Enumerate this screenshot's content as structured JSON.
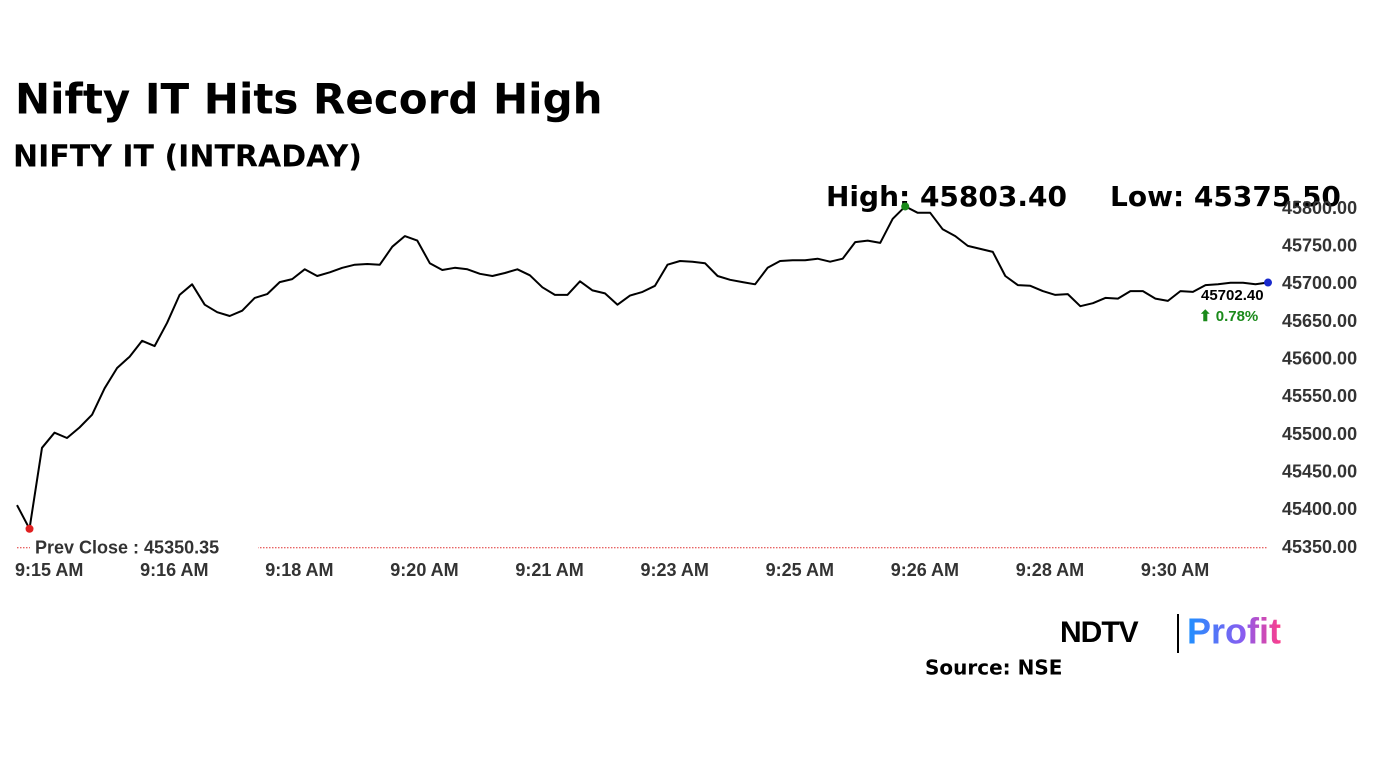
{
  "chart_data": {
    "type": "line",
    "title": "Nifty IT Hits Record High",
    "subtitle": "NIFTY IT (INTRADAY)",
    "high_label": "High: 45803.40",
    "low_label": "Low: 45375.50",
    "last_label": "45702.40",
    "change_label": "⬆ 0.78%",
    "reference_line": {
      "value": 45350.35,
      "label": "Prev Close : 45350.35",
      "color": "#e03030"
    },
    "categories": [
      "9:15 AM",
      null,
      null,
      null,
      null,
      null,
      null,
      null,
      null,
      null,
      "9:16 AM",
      null,
      null,
      null,
      null,
      null,
      null,
      null,
      null,
      null,
      "9:18 AM",
      null,
      null,
      null,
      null,
      null,
      null,
      null,
      null,
      null,
      "9:20 AM",
      null,
      null,
      null,
      null,
      null,
      null,
      null,
      null,
      null,
      "9:21 AM",
      null,
      null,
      null,
      null,
      null,
      null,
      null,
      null,
      null,
      "9:23 AM",
      null,
      null,
      null,
      null,
      null,
      null,
      null,
      null,
      null,
      "9:25 AM",
      null,
      null,
      null,
      null,
      null,
      null,
      null,
      null,
      null,
      "9:26 AM",
      null,
      null,
      null,
      null,
      null,
      null,
      null,
      null,
      null,
      "9:28 AM",
      null,
      null,
      null,
      null,
      null,
      null,
      null,
      null,
      null,
      "9:30 AM",
      null,
      null,
      null,
      null,
      null,
      null,
      null,
      null,
      null,
      null
    ],
    "values": [
      45407,
      45375.5,
      45483,
      45503,
      45496,
      45510,
      45527,
      45562,
      45589,
      45604,
      45625,
      45618,
      45649,
      45686,
      45700,
      45673,
      45663,
      45658,
      45665,
      45682,
      45687,
      45703,
      45707,
      45720,
      45711,
      45716,
      45722,
      45726,
      45727,
      45726,
      45750,
      45764,
      45758,
      45728,
      45719,
      45722,
      45720,
      45714,
      45711,
      45715,
      45720,
      45712,
      45696,
      45686,
      45686,
      45704,
      45692,
      45688,
      45673,
      45685,
      45690,
      45698,
      45726,
      45731,
      45730,
      45728,
      45711,
      45706,
      45703,
      45700,
      45722,
      45731,
      45732,
      45732,
      45734,
      45730,
      45734,
      45756,
      45758,
      45755,
      45787,
      45803.4,
      45795,
      45795,
      45773,
      45764,
      45751,
      45747,
      45743,
      45711,
      45699,
      45698,
      45691,
      45686,
      45687,
      45671,
      45675,
      45682,
      45681,
      45691,
      45691,
      45681,
      45678,
      45691,
      45690,
      45699,
      45700,
      45702,
      45702,
      45700,
      45702.4
    ],
    "color": "#000000",
    "high_color": "#1a8a1a",
    "low_color": "#e02020",
    "last_color": "#1a2acc",
    "change_color": "#1a8a1a",
    "ylim": [
      45350,
      45800
    ],
    "yticks": [
      {
        "value": 45350,
        "label": "45350.00"
      },
      {
        "value": 45400,
        "label": "45400.00"
      },
      {
        "value": 45450,
        "label": "45450.00"
      },
      {
        "value": 45500,
        "label": "45500.00"
      },
      {
        "value": 45550,
        "label": "45550.00"
      },
      {
        "value": 45600,
        "label": "45600.00"
      },
      {
        "value": 45650,
        "label": "45650.00"
      },
      {
        "value": 45700,
        "label": "45700.00"
      },
      {
        "value": 45750,
        "label": "45750.00"
      },
      {
        "value": 45800,
        "label": "45800.00"
      }
    ],
    "grid": false
  },
  "footer": {
    "brand": "NDTV",
    "product": "Profit",
    "source": "Source: NSE"
  }
}
